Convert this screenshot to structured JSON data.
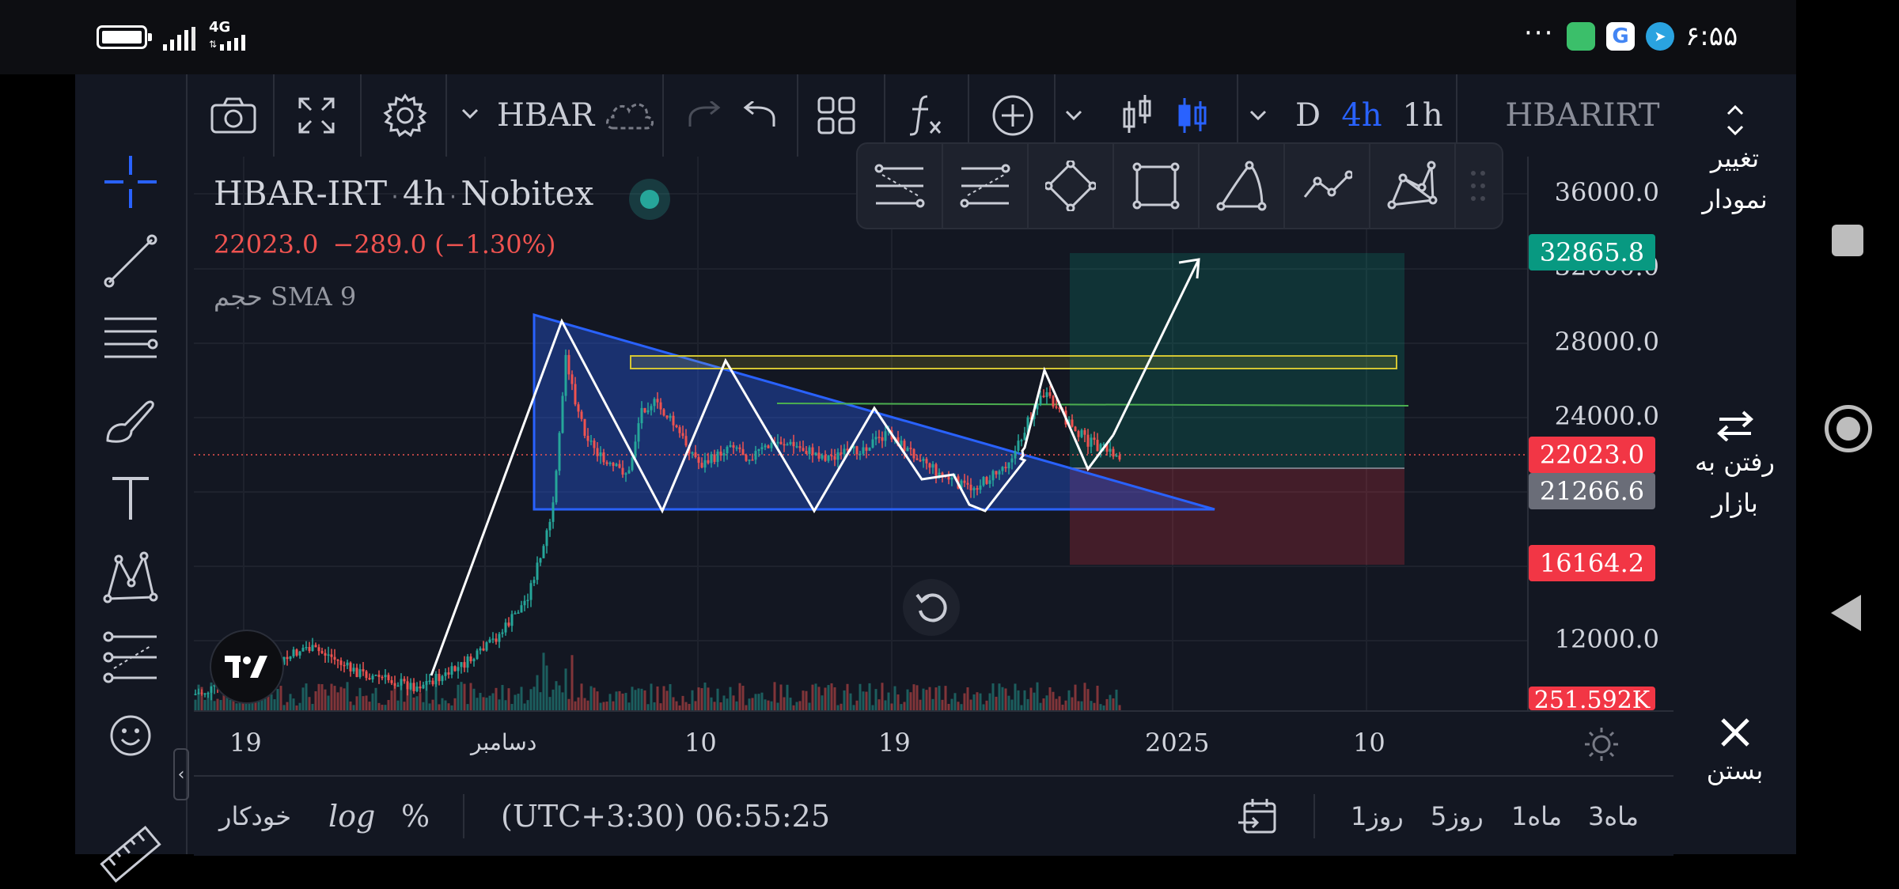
{
  "status_bar": {
    "network": "4G",
    "time": "۶:۵۵",
    "more": "···"
  },
  "toolbar": {
    "symbol": "HBAR",
    "interval_d": "D",
    "interval_4h": "4h",
    "interval_1h": "1h",
    "symbol_right": "HBARIRT"
  },
  "legend": {
    "symbol": "HBAR-IRT",
    "interval": "4h",
    "exchange": "Nobitex",
    "dot1": "·",
    "dot2": "·",
    "price": "22023.0",
    "change": "−289.0 (−1.30%)",
    "volume_label": "حجم SMA 9"
  },
  "price_axis": {
    "labels": [
      "36000.0",
      "28000.0",
      "24000.0",
      "12000.0"
    ],
    "tag_target": "32865.8",
    "tag_last": "22023.0",
    "tag_entry": "21266.6",
    "tag_stop": "16164.2",
    "tag_volume": "251.592K"
  },
  "time_axis": {
    "labels": [
      "19",
      "دسامبر",
      "10",
      "19",
      "2025",
      "10"
    ]
  },
  "bottom_bar": {
    "auto": "خودکار",
    "log": "log",
    "percent": "%",
    "clock": "(UTC+3:30) 06:55:25",
    "ranges": [
      "1روز",
      "5روز",
      "1ماه",
      "3ماه"
    ]
  },
  "right_panel": {
    "change_chart_1": "تغییر",
    "change_chart_2": "نمودار",
    "go_market_1": "رفتن به",
    "go_market_2": "بازار",
    "close": "بستن"
  },
  "colors": {
    "up": "#26a69a",
    "down": "#ef5350",
    "accent": "#2962ff",
    "background": "#131722"
  },
  "chart_data": {
    "type": "candlestick",
    "symbol": "HBAR-IRT",
    "interval": "4h",
    "x_tick_labels": [
      "19",
      "دسامبر",
      "10",
      "19",
      "2025",
      "10"
    ],
    "y_tick_labels": [
      "36000.0",
      "28000.0",
      "24000.0",
      "12000.0"
    ],
    "last_price": 22023.0,
    "change": -289.0,
    "change_percent": -1.3,
    "position_target": 32865.8,
    "position_entry": 21266.6,
    "position_stop": 16164.2,
    "volume_last": "251.592K"
  }
}
